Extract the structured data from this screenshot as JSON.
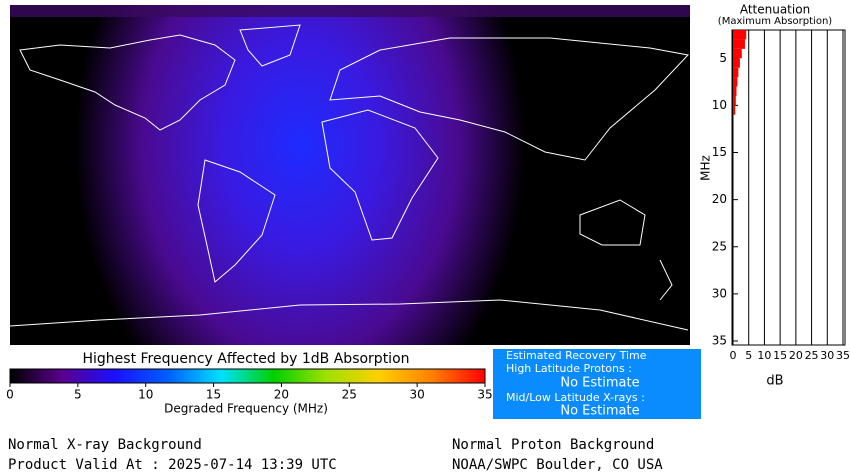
{
  "chart_data": [
    {
      "type": "bar",
      "orientation": "horizontal",
      "title": "Attenuation",
      "subtitle": "(Maximum Absorption)",
      "y_label": "MHz",
      "x_label": "dB",
      "y": [
        2,
        3,
        4,
        5,
        6,
        7,
        8,
        9,
        10
      ],
      "values": [
        4.2,
        3.8,
        2.8,
        2.2,
        1.7,
        1.4,
        1.1,
        0.9,
        0.7
      ],
      "color": "#ff0000",
      "ylim": [
        2,
        35
      ],
      "yticks": [
        5,
        10,
        15,
        20,
        25,
        30,
        35
      ],
      "xlim": [
        0,
        35
      ],
      "xticks": [
        0,
        5,
        10,
        15,
        20,
        25,
        30,
        35
      ],
      "grid": true
    },
    {
      "type": "colorbar",
      "title": "Highest Frequency Affected by 1dB Absorption",
      "x_label": "Degraded Frequency (MHz)",
      "xlim": [
        0,
        35
      ],
      "xticks": [
        0,
        5,
        10,
        15,
        20,
        25,
        30,
        35
      ],
      "colors": [
        "#000000",
        "#5a0090",
        "#1a10ff",
        "#0060ff",
        "#00e0ff",
        "#00d000",
        "#a0e000",
        "#ffd000",
        "#ff8000",
        "#ff0000"
      ]
    }
  ],
  "recovery": {
    "title": "Estimated Recovery Time",
    "rows": [
      {
        "label": "High Latitude Protons :",
        "value": "No Estimate"
      },
      {
        "label": "Mid/Low Latitude X-rays :",
        "value": "No Estimate"
      }
    ]
  },
  "footer": {
    "left": [
      "Normal X-ray Background",
      "Product Valid At : 2025-07-14 13:39 UTC"
    ],
    "right": [
      "Normal Proton Background",
      "NOAA/SWPC Boulder, CO USA"
    ]
  }
}
